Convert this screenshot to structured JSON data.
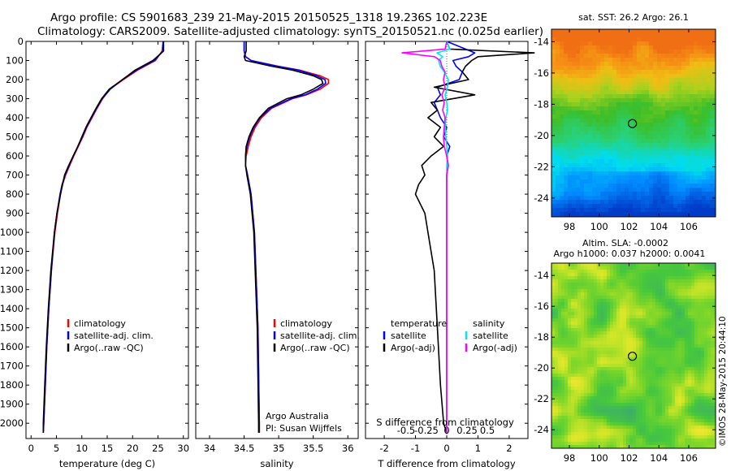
{
  "header": {
    "line1": "Argo profile: CS 5901683_239 21-May-2015 20150525_1318 19.236S 102.223E",
    "line2": "Climatology: CARS2009. Satellite-adjusted climatology: synTS_20150521.nc (0.025d earlier)"
  },
  "side_text": "©IMOS 28-May-2015 20:44:10",
  "colors": {
    "climatology": "#ff0000",
    "satellite": "#0000ff",
    "argo": "#000000",
    "salinity_satellite": "#00e5ee",
    "salinity_argo": "#ff00ff"
  },
  "chart_data": [
    {
      "type": "line",
      "id": "temperature",
      "xlabel": "temperature (deg C)",
      "ylabel": "",
      "xlim": [
        -1,
        31
      ],
      "ylim": [
        2080,
        0
      ],
      "xticks": [
        "0",
        "5",
        "10",
        "15",
        "20",
        "25",
        "30"
      ],
      "yticks": [
        "0",
        "100",
        "200",
        "300",
        "400",
        "500",
        "600",
        "700",
        "800",
        "900",
        "1000",
        "1100",
        "1200",
        "1300",
        "1400",
        "1500",
        "1600",
        "1700",
        "1800",
        "1900",
        "2000"
      ],
      "legend": [
        "climatology",
        "satellite-adj. clim.",
        "Argo(..raw -QC)"
      ],
      "depth": [
        0,
        50,
        100,
        150,
        200,
        250,
        300,
        350,
        400,
        450,
        500,
        550,
        600,
        650,
        700,
        750,
        800,
        900,
        1000,
        1200,
        1400,
        1600,
        1800,
        2000,
        2050
      ],
      "series": [
        {
          "name": "climatology",
          "values": [
            26,
            25.8,
            24.5,
            21,
            18.2,
            15.5,
            14.1,
            13.0,
            12.0,
            11.0,
            10.2,
            9.3,
            8.4,
            7.6,
            6.8,
            6.2,
            5.8,
            5.2,
            4.7,
            4.0,
            3.5,
            3.1,
            2.8,
            2.5,
            2.4
          ]
        },
        {
          "name": "satellite-adj. clim.",
          "values": [
            26,
            26,
            24.3,
            20.8,
            18.0,
            15.6,
            14.0,
            12.9,
            11.9,
            10.9,
            10.1,
            9.2,
            8.3,
            7.5,
            6.7,
            6.1,
            5.7,
            5.1,
            4.6,
            4.0,
            3.5,
            3.1,
            2.8,
            2.5,
            2.4
          ]
        },
        {
          "name": "Argo(..raw -QC)",
          "values": [
            26.1,
            26.1,
            24.0,
            20.5,
            18.0,
            15.4,
            13.9,
            12.8,
            11.8,
            10.8,
            10.0,
            9.2,
            8.3,
            7.4,
            6.6,
            6.2,
            5.8,
            5.1,
            4.6,
            3.9,
            3.4,
            3.0,
            2.7,
            2.4,
            2.4
          ]
        }
      ]
    },
    {
      "type": "line",
      "id": "salinity",
      "xlabel": "salinity",
      "xlim": [
        33.8,
        36.15
      ],
      "ylim": [
        2080,
        0
      ],
      "xticks": [
        "34",
        "34.5",
        "35",
        "35.5",
        "36"
      ],
      "legend": [
        "climatology",
        "satellite-adj. clim.",
        "Argo(..raw -QC)"
      ],
      "annotation": [
        "Argo Australia",
        "PI: Susan Wijffels"
      ],
      "depth": [
        0,
        50,
        80,
        100,
        130,
        150,
        180,
        200,
        220,
        250,
        280,
        300,
        350,
        400,
        450,
        500,
        550,
        600,
        650,
        700,
        800,
        1000,
        1500,
        2000,
        2050
      ],
      "series": [
        {
          "name": "climatology",
          "values": [
            34.5,
            34.5,
            34.52,
            34.6,
            35.0,
            35.3,
            35.6,
            35.72,
            35.72,
            35.6,
            35.4,
            35.2,
            34.9,
            34.75,
            34.66,
            34.6,
            34.56,
            34.53,
            34.52,
            34.55,
            34.6,
            34.65,
            34.7,
            34.72,
            34.72
          ]
        },
        {
          "name": "satellite-adj. clim.",
          "values": [
            34.5,
            34.5,
            34.52,
            34.6,
            34.98,
            35.28,
            35.55,
            35.67,
            35.68,
            35.56,
            35.38,
            35.18,
            34.88,
            34.73,
            34.64,
            34.58,
            34.54,
            34.52,
            34.52,
            34.55,
            34.6,
            34.65,
            34.7,
            34.72,
            34.72
          ]
        },
        {
          "name": "Argo(..raw -QC)",
          "values": [
            34.53,
            34.53,
            34.5,
            34.52,
            34.9,
            35.2,
            35.5,
            35.62,
            35.64,
            35.5,
            35.32,
            35.12,
            34.85,
            34.72,
            34.63,
            34.57,
            34.53,
            34.52,
            34.52,
            34.54,
            34.59,
            34.64,
            34.69,
            34.71,
            34.71
          ]
        }
      ]
    },
    {
      "type": "line",
      "id": "differences",
      "xlabel": "T difference from climatology",
      "xlabel_top": "S difference from climatology",
      "xlim": [
        -2.6,
        2.6
      ],
      "ylim": [
        2080,
        0
      ],
      "xticks_bottom": [
        "-2",
        "-1",
        "0",
        "1",
        "2"
      ],
      "xticks_top": [
        "-0.5",
        "-0.25",
        "0",
        "0.25",
        "0.5"
      ],
      "legend_temperature": [
        "temperature",
        "satellite",
        "Argo(-adj)"
      ],
      "legend_salinity": [
        "salinity",
        "satellite",
        "Argo(-adj)"
      ],
      "depth": [
        0,
        40,
        60,
        80,
        100,
        130,
        160,
        200,
        240,
        280,
        320,
        360,
        400,
        450,
        500,
        550,
        600,
        650,
        700,
        750,
        800,
        900,
        1000,
        1200,
        1500,
        1800,
        2000,
        2050
      ],
      "series": [
        {
          "name": "temperature satellite",
          "values": [
            0,
            0.6,
            0.9,
            0.7,
            0.2,
            0.3,
            0.5,
            0.4,
            -0.3,
            -0.2,
            -0.4,
            -0.3,
            -0.2,
            0,
            -0.1,
            0.1,
            0,
            0.05,
            0,
            0,
            0,
            0,
            0,
            0,
            0,
            0,
            0,
            0
          ]
        },
        {
          "name": "temperature Argo(-adj)",
          "values": [
            0,
            0.1,
            2.8,
            1.0,
            0.8,
            0.6,
            0.5,
            0.7,
            -0.4,
            0.9,
            -0.5,
            -0.3,
            -0.6,
            -0.2,
            -0.4,
            -0.1,
            -0.5,
            -0.8,
            -0.7,
            -0.9,
            -1.0,
            -0.7,
            -0.6,
            -0.4,
            -0.3,
            -0.2,
            -0.1,
            0
          ]
        },
        {
          "name": "salinity satellite",
          "values": [
            0,
            0.04,
            -0.12,
            -0.05,
            -0.1,
            -0.08,
            -0.03,
            0.02,
            0.01,
            -0.02,
            0,
            0.01,
            -0.01,
            -0.02,
            -0.01,
            0,
            0.01,
            0,
            0,
            0,
            0,
            0,
            0,
            0,
            0,
            0,
            0,
            0
          ]
        },
        {
          "name": "salinity Argo(-adj)",
          "values": [
            0,
            -0.02,
            -0.55,
            -0.15,
            -0.08,
            -0.06,
            -0.02,
            -0.04,
            -0.02,
            -0.06,
            -0.03,
            -0.05,
            -0.02,
            -0.03,
            -0.04,
            -0.03,
            0,
            0.02,
            0,
            0,
            0,
            0,
            0,
            0,
            0,
            0,
            0,
            0
          ]
        }
      ]
    },
    {
      "type": "heatmap",
      "id": "sst_map",
      "title": "sat. SST: 26.2  Argo: 26.1",
      "xticks": [
        "98",
        "100",
        "102",
        "104",
        "106"
      ],
      "yticks": [
        "-14",
        "-16",
        "-18",
        "-20",
        "-22",
        "-24"
      ],
      "xlim": [
        96.8,
        107.8
      ],
      "ylim": [
        -25.2,
        -13.2
      ],
      "marker": {
        "lon": 102.223,
        "lat": -19.236
      }
    },
    {
      "type": "heatmap",
      "id": "sla_map",
      "title_line1": "Altim. SLA: -0.0002",
      "title_line2": "Argo h1000: 0.037 h2000: 0.0041",
      "xticks": [
        "98",
        "100",
        "102",
        "104",
        "106"
      ],
      "yticks": [
        "-14",
        "-16",
        "-18",
        "-20",
        "-22",
        "-24"
      ],
      "xlim": [
        96.8,
        107.8
      ],
      "ylim": [
        -25.2,
        -13.2
      ],
      "marker": {
        "lon": 102.223,
        "lat": -19.236
      }
    }
  ]
}
